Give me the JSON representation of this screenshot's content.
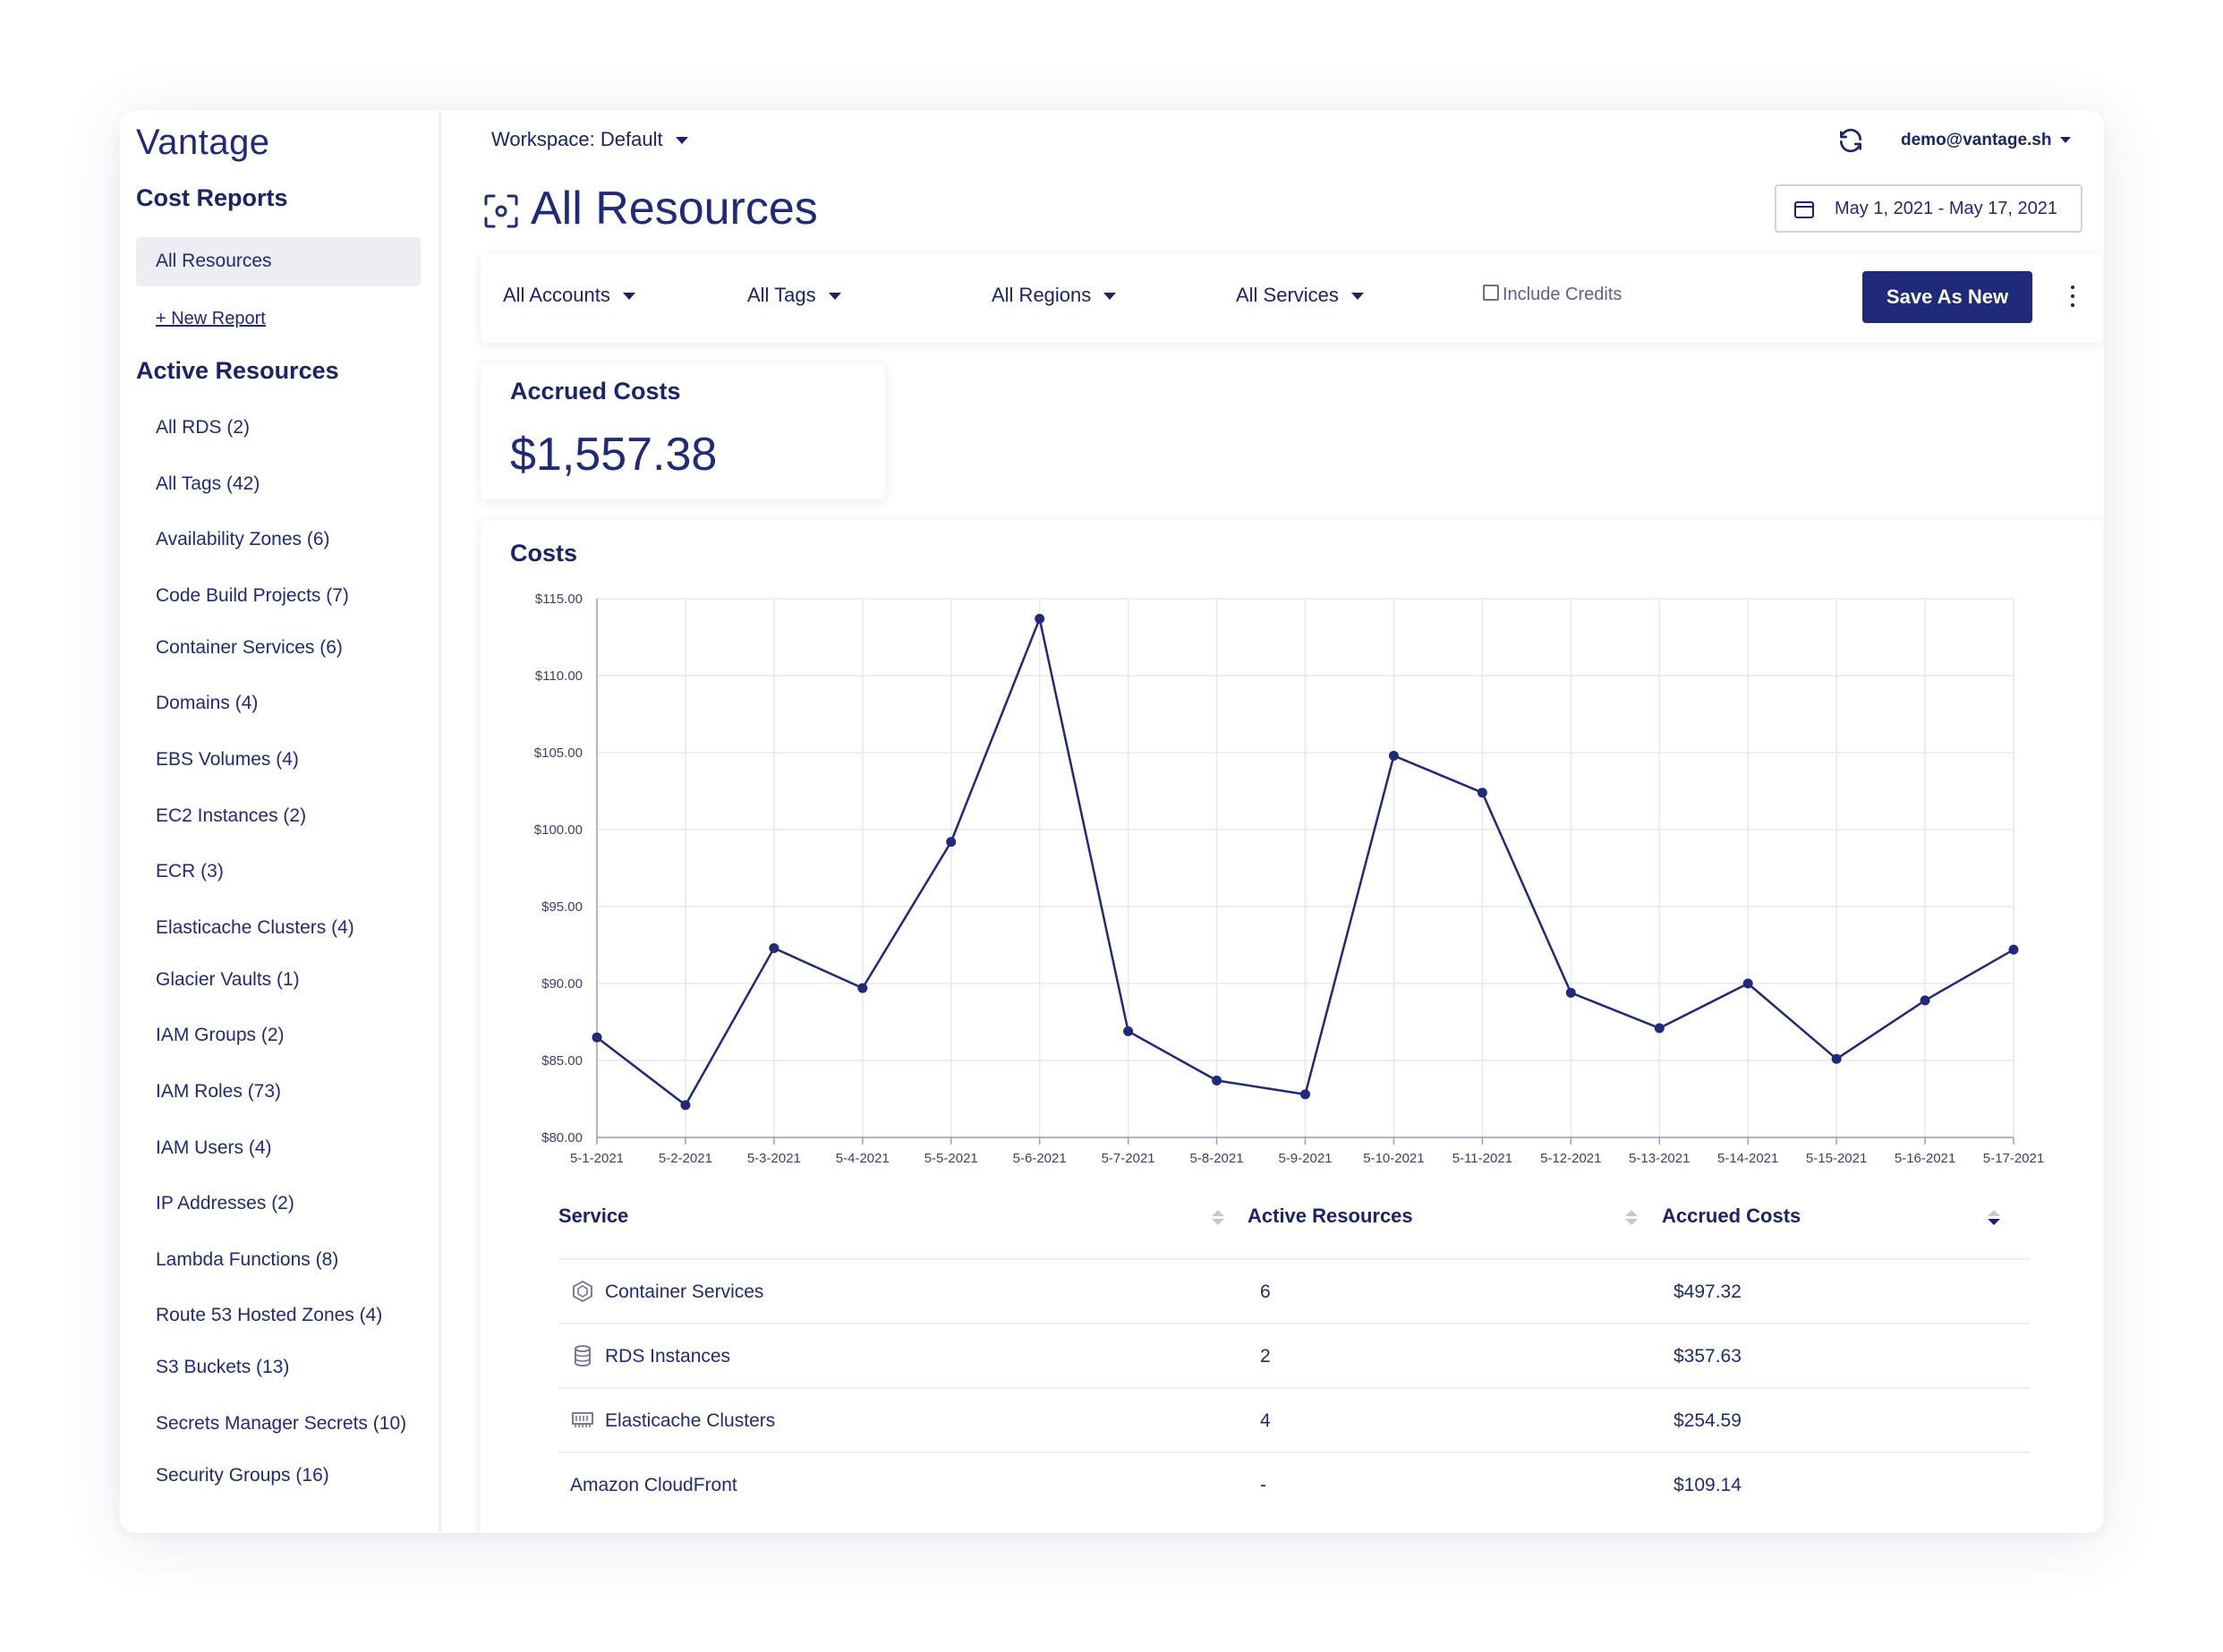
{
  "brand": "Vantage",
  "sidebar": {
    "cost_reports_heading": "Cost Reports",
    "active_report": "All Resources",
    "new_report": "+ New Report",
    "active_resources_heading": "Active Resources",
    "items": [
      "All RDS (2)",
      "All Tags (42)",
      "Availability Zones (6)",
      "Code Build Projects (7)",
      "Container Services (6)",
      "Domains (4)",
      "EBS Volumes (4)",
      "EC2 Instances (2)",
      "ECR (3)",
      "Elasticache Clusters (4)",
      "Glacier Vaults (1)",
      "IAM Groups (2)",
      "IAM Roles (73)",
      "IAM Users (4)",
      "IP Addresses (2)",
      "Lambda Functions (8)",
      "Route 53 Hosted Zones (4)",
      "S3 Buckets (13)",
      "Secrets Manager Secrets (10)",
      "Security Groups (16)"
    ]
  },
  "header": {
    "workspace": "Workspace: Default",
    "user": "demo@vantage.sh",
    "page_title": "All Resources",
    "date_range": "May 1, 2021 - May 17, 2021"
  },
  "filters": {
    "accounts": "All Accounts",
    "tags": "All Tags",
    "regions": "All Regions",
    "services": "All Services",
    "include_credits": "Include Credits",
    "save_button": "Save As New"
  },
  "accrued": {
    "label": "Accrued Costs",
    "value": "$1,557.38"
  },
  "costs_title": "Costs",
  "chart_data": {
    "type": "line",
    "title": "Costs",
    "x": [
      "5-1-2021",
      "5-2-2021",
      "5-3-2021",
      "5-4-2021",
      "5-5-2021",
      "5-6-2021",
      "5-7-2021",
      "5-8-2021",
      "5-9-2021",
      "5-10-2021",
      "5-11-2021",
      "5-12-2021",
      "5-13-2021",
      "5-14-2021",
      "5-15-2021",
      "5-16-2021",
      "5-17-2021"
    ],
    "values": [
      86.5,
      82.1,
      92.3,
      89.7,
      99.2,
      113.7,
      86.9,
      83.7,
      82.8,
      104.8,
      102.4,
      89.4,
      87.1,
      90.0,
      85.1,
      88.9,
      92.2
    ],
    "ylim": [
      80,
      115
    ],
    "y_ticks": [
      80,
      85,
      90,
      95,
      100,
      105,
      110,
      115
    ],
    "y_tick_labels": [
      "$80.00",
      "$85.00",
      "$90.00",
      "$95.00",
      "$100.00",
      "$105.00",
      "$110.00",
      "$115.00"
    ],
    "grid": true,
    "line_color": "#1f2a7a"
  },
  "table": {
    "headers": [
      "Service",
      "Active Resources",
      "Accrued Costs"
    ],
    "rows": [
      {
        "icon": "container-icon",
        "service": "Container Services",
        "active": "6",
        "cost": "$497.32"
      },
      {
        "icon": "database-icon",
        "service": "RDS Instances",
        "active": "2",
        "cost": "$357.63"
      },
      {
        "icon": "cache-cluster-icon",
        "service": "Elasticache Clusters",
        "active": "4",
        "cost": "$254.59"
      },
      {
        "icon": "",
        "service": "Amazon CloudFront",
        "active": "-",
        "cost": "$109.14"
      }
    ]
  }
}
